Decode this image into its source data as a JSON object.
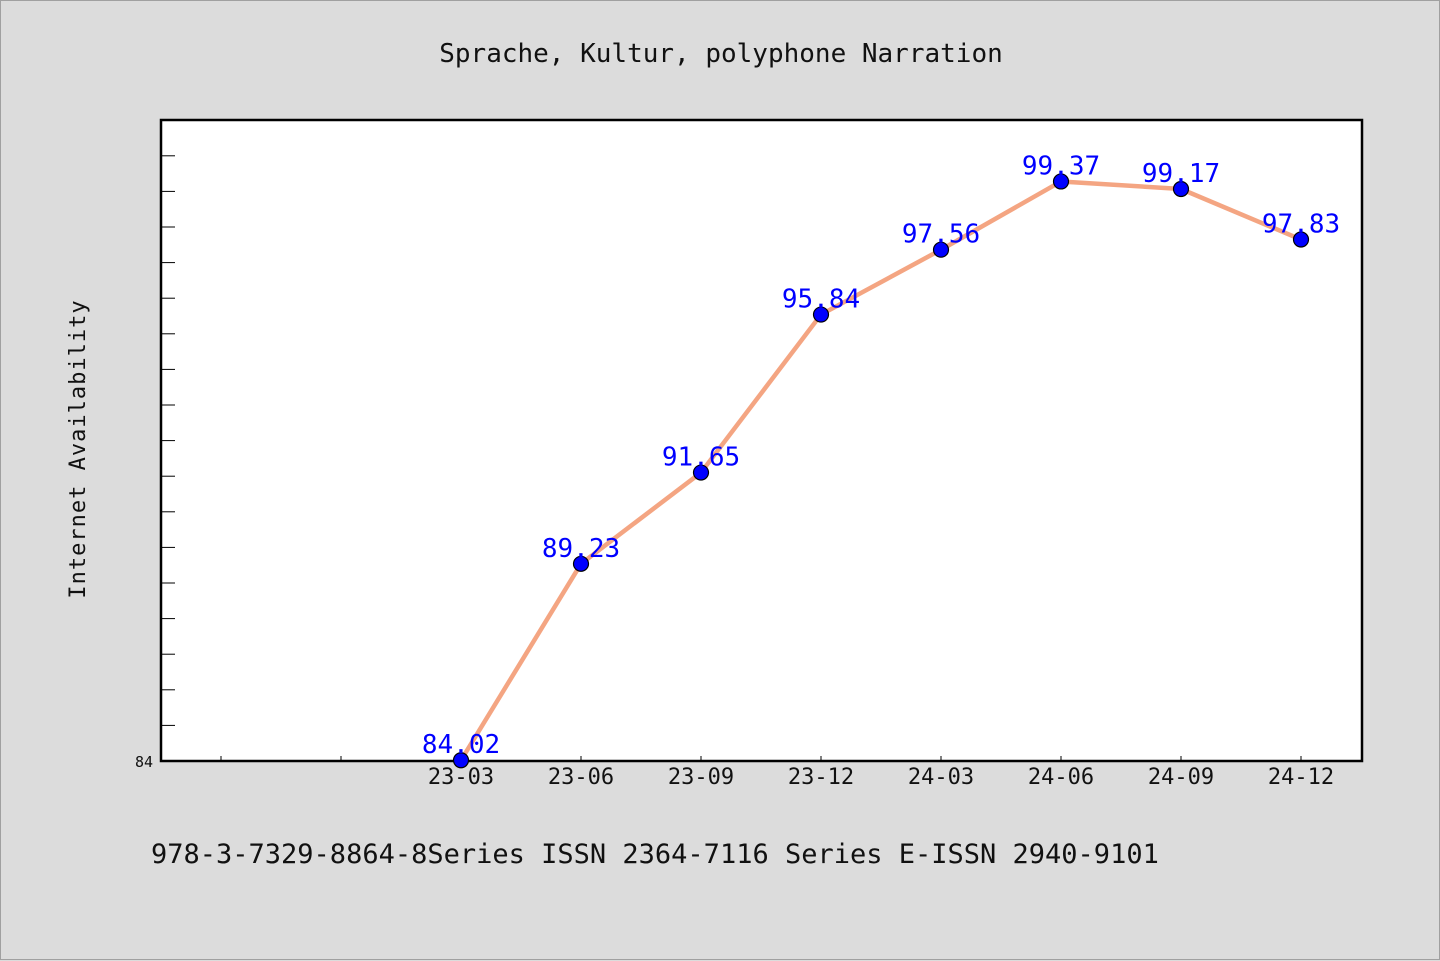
{
  "chart_data": {
    "type": "line",
    "title": "Sprache, Kultur, polyphone Narration",
    "ylabel": "Internet Availability",
    "xlabel": "",
    "categories": [
      "23-03",
      "23-06",
      "23-09",
      "23-12",
      "24-03",
      "24-06",
      "24-09",
      "24-12"
    ],
    "series": [
      {
        "values": [
          84.02,
          89.23,
          91.65,
          95.84,
          97.56,
          99.37,
          99.17,
          97.83
        ]
      }
    ],
    "data_labels": [
      "84.02",
      "89.23",
      "91.65",
      "95.84",
      "97.56",
      "99.37",
      "99.17",
      "97.83"
    ],
    "y_tick_labels": [
      "84"
    ],
    "ylim": [
      84,
      101
    ],
    "grid": false,
    "line_color": "#f4a582",
    "marker_color": "#0000ff",
    "label_color": "#0000ff"
  },
  "footer": {
    "text": "978-3-7329-8864-8Series ISSN 2364-7116 Series E-ISSN 2940-9101"
  }
}
